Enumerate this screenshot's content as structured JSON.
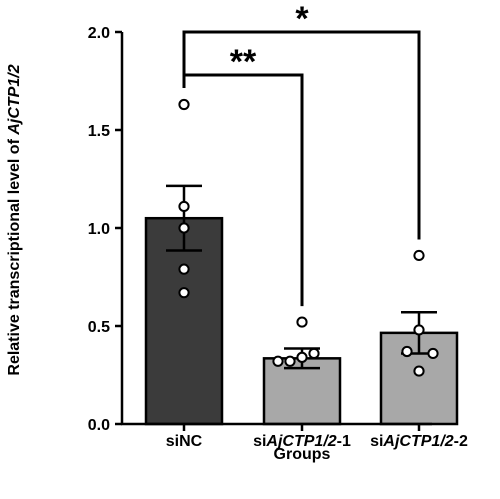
{
  "chart_data": {
    "type": "bar",
    "xlabel": "Groups",
    "ylabel": {
      "prefix": "Relative transcriptional level of ",
      "gene": "AjCTP1/2"
    },
    "ylim": [
      0,
      2.0
    ],
    "yticks": [
      "0.0",
      "0.5",
      "1.0",
      "1.5",
      "2.0"
    ],
    "grid": false,
    "categories": [
      {
        "prefix": "si",
        "italic": "",
        "suffix": "NC"
      },
      {
        "prefix": "si",
        "italic": "AjCTP1/2",
        "suffix": "-1"
      },
      {
        "prefix": "si",
        "italic": "AjCTP1/2",
        "suffix": "-2"
      }
    ],
    "values": [
      1.05,
      0.335,
      0.465
    ],
    "errors": [
      0.165,
      0.05,
      0.105
    ],
    "points": [
      [
        1.63,
        1.11,
        1.0,
        0.79,
        0.67
      ],
      [
        0.52,
        0.36,
        0.34,
        0.32,
        0.32
      ],
      [
        0.86,
        0.48,
        0.37,
        0.36,
        0.27
      ]
    ],
    "bar_colors": [
      "#3b3b3b",
      "#a8a8a8",
      "#a8a8a8"
    ],
    "significance": [
      {
        "from": 0,
        "to": 1,
        "label": "**"
      },
      {
        "from": 0,
        "to": 2,
        "label": "*"
      }
    ]
  }
}
